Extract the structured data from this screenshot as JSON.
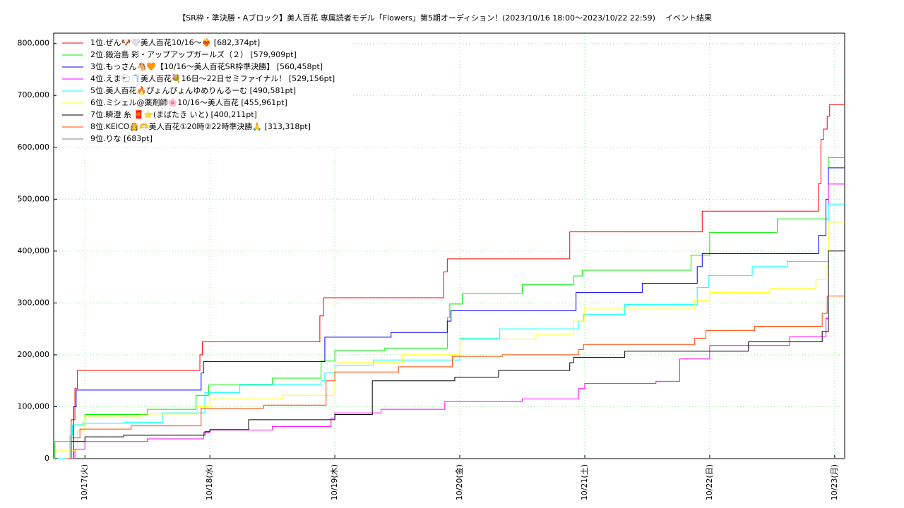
{
  "chart_data": {
    "type": "line",
    "drawstyle": "steps-post",
    "title": "【SR枠・準決勝・Aブロック】美人百花 専属読者モデル「Flowers」第5期オーディション！(2023/10/16 18:00～2023/10/22 22:59)",
    "subtitle": "イベント結果",
    "xlim": [
      16.75,
      23.08
    ],
    "ylim": [
      0,
      820000
    ],
    "xticks": [
      {
        "value": 17,
        "label": "10/17(火)"
      },
      {
        "value": 18,
        "label": "10/18(水)"
      },
      {
        "value": 19,
        "label": "10/19(木)"
      },
      {
        "value": 20,
        "label": "10/20(金)"
      },
      {
        "value": 21,
        "label": "10/21(土)"
      },
      {
        "value": 22,
        "label": "10/22(日)"
      },
      {
        "value": 23,
        "label": "10/23(月)"
      }
    ],
    "yticks": [
      0,
      {
        "value": 100000,
        "label": "100,000"
      },
      {
        "value": 200000,
        "label": "200,000"
      },
      {
        "value": 300000,
        "label": "300,000"
      },
      {
        "value": 400000,
        "label": "400,000"
      },
      {
        "value": 500000,
        "label": "500,000"
      },
      {
        "value": 600000,
        "label": "600,000"
      },
      {
        "value": 700000,
        "label": "700,000"
      },
      {
        "value": 800000,
        "label": "800,000"
      }
    ],
    "grid": true,
    "legend": "upper left",
    "series": [
      {
        "name": "1位.ぜん🐶🤍美人百花10/16〜❤️‍🔥 [682,374pt]",
        "color": "#ff0000",
        "x": [
          16.87,
          16.89,
          16.92,
          16.94,
          17.92,
          17.94,
          18.88,
          18.91,
          19.87,
          19.9,
          20.88,
          21.94,
          22.87,
          22.89,
          22.91,
          22.94,
          22.96,
          23.08
        ],
        "values": [
          0,
          75000,
          135000,
          170000,
          200000,
          225000,
          275000,
          310000,
          360000,
          385000,
          437000,
          477000,
          530000,
          615000,
          635000,
          660000,
          682374,
          682374
        ]
      },
      {
        "name": "2位.鍛治島 彩・アップアップガールズ（２） [579,909pt]",
        "color": "#00ee00",
        "x": [
          16.75,
          16.76,
          16.89,
          16.91,
          17.0,
          17.5,
          17.89,
          17.99,
          18.5,
          18.89,
          19.0,
          19.4,
          19.9,
          19.92,
          20.02,
          20.5,
          20.91,
          20.98,
          21.85,
          22.0,
          22.54,
          22.95,
          23.08
        ],
        "values": [
          0,
          33000,
          33000,
          65000,
          85000,
          95000,
          122000,
          142000,
          155000,
          188000,
          208000,
          213000,
          272000,
          298000,
          318000,
          335000,
          352000,
          363000,
          392000,
          436000,
          462000,
          579909,
          579909
        ]
      },
      {
        "name": "3位.もっさん🐴🧡【10/16〜美人百花SR枠準決勝】 [560,458pt]",
        "color": "#0000ff",
        "x": [
          16.85,
          16.91,
          16.93,
          17.93,
          17.95,
          18.92,
          19.45,
          19.9,
          19.93,
          20.93,
          21.46,
          21.9,
          21.94,
          22.87,
          22.93,
          22.95,
          23.08
        ],
        "values": [
          0,
          100000,
          132000,
          165000,
          187000,
          234000,
          243000,
          265000,
          285000,
          320000,
          338000,
          370000,
          395000,
          430000,
          500000,
          560458,
          560458
        ]
      },
      {
        "name": "4位.えま🐑🧻美人百花💐16日〜22日セミファイナル！ [529,156pt]",
        "color": "#ff00ff",
        "x": [
          16.88,
          16.92,
          17.0,
          17.5,
          17.95,
          18.0,
          18.5,
          18.97,
          19.0,
          19.37,
          19.88,
          20.5,
          20.95,
          21.0,
          21.57,
          21.76,
          22.0,
          22.64,
          22.93,
          22.95,
          23.08
        ],
        "values": [
          0,
          18000,
          33000,
          38000,
          50000,
          55000,
          62000,
          78000,
          88000,
          95000,
          110000,
          115000,
          135000,
          145000,
          149000,
          192000,
          218000,
          235000,
          270000,
          529156,
          529156
        ]
      },
      {
        "name": "5位.美人百花🔥ぴょんぴょんゆめりんるーむ [490,581pt]",
        "color": "#00ffff",
        "x": [
          16.78,
          16.88,
          16.9,
          16.98,
          17.31,
          17.62,
          17.96,
          18.24,
          18.89,
          18.92,
          19.0,
          19.31,
          20.0,
          20.32,
          20.95,
          20.99,
          21.32,
          21.9,
          21.99,
          22.34,
          22.62,
          22.95,
          23.08
        ],
        "values": [
          0,
          45000,
          65000,
          68000,
          70000,
          88000,
          127000,
          143000,
          150000,
          165000,
          180000,
          190000,
          232000,
          250000,
          265000,
          278000,
          297000,
          330000,
          353000,
          370000,
          380000,
          490581,
          490581
        ]
      },
      {
        "name": "6位.ミシェル@薬剤師🌸10/16〜美人百花 [455,961pt]",
        "color": "#ffff00",
        "x": [
          16.77,
          16.94,
          17.0,
          17.45,
          17.9,
          18.0,
          18.58,
          19.0,
          19.02,
          19.54,
          20.0,
          20.61,
          20.91,
          21.0,
          21.88,
          22.0,
          22.48,
          22.85,
          22.93,
          22.95,
          23.08
        ],
        "values": [
          15000,
          55000,
          80000,
          86000,
          100000,
          115000,
          122000,
          175000,
          185000,
          200000,
          230000,
          240000,
          265000,
          290000,
          305000,
          320000,
          328000,
          345000,
          370000,
          455961,
          455961
        ]
      },
      {
        "name": "7位.瞬澄 糸 🧧⭐(まばたき いと) [400,211pt]",
        "color": "#000000",
        "x": [
          16.87,
          16.89,
          17.0,
          17.31,
          17.96,
          18.0,
          18.31,
          19.0,
          19.3,
          19.96,
          20.31,
          20.88,
          20.91,
          21.32,
          22.31,
          22.9,
          22.95,
          23.08
        ],
        "values": [
          0,
          33000,
          42000,
          45000,
          52000,
          56000,
          75000,
          85000,
          150000,
          157000,
          170000,
          185000,
          195000,
          207000,
          225000,
          245000,
          400211,
          400211
        ]
      },
      {
        "name": "8位.KEICO👸🫶美人百花①20時②22時準決勝🙏 [313,318pt]",
        "color": "#ff4500",
        "x": [
          16.85,
          16.89,
          16.96,
          17.37,
          17.93,
          18.43,
          18.93,
          19.0,
          19.51,
          19.94,
          20.34,
          20.95,
          20.99,
          21.88,
          21.97,
          22.36,
          22.9,
          22.94,
          23.08
        ],
        "values": [
          0,
          40000,
          57000,
          63000,
          97000,
          103000,
          150000,
          167000,
          177000,
          197000,
          200000,
          210000,
          220000,
          232000,
          247000,
          255000,
          280000,
          313318,
          313318
        ]
      },
      {
        "name": "9位.りな [683pt]",
        "color": "#808080",
        "x": [
          16.9,
          23.08
        ],
        "values": [
          683,
          683
        ]
      }
    ]
  }
}
